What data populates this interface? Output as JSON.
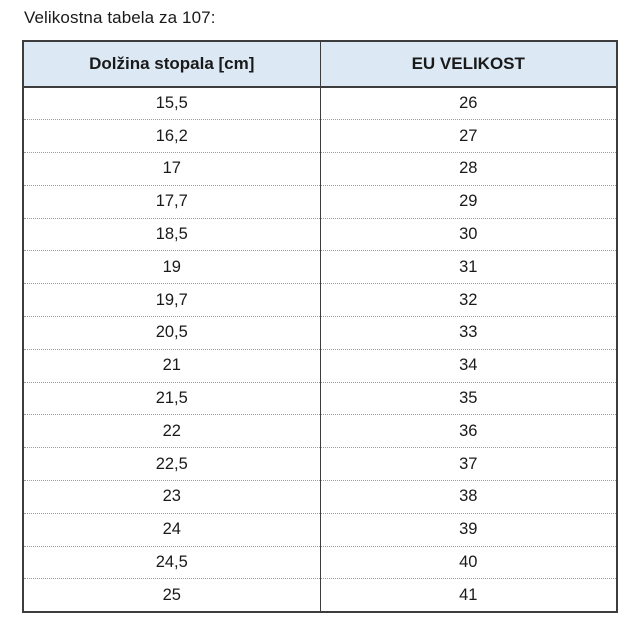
{
  "page_title": "Velikostna tabela za 107:",
  "table": {
    "columns": [
      {
        "label": "Dolžina stopala [cm]"
      },
      {
        "label": "EU VELIKOST"
      }
    ],
    "rows": [
      {
        "foot_length_cm": "15,5",
        "eu_size": "26"
      },
      {
        "foot_length_cm": "16,2",
        "eu_size": "27"
      },
      {
        "foot_length_cm": "17",
        "eu_size": "28"
      },
      {
        "foot_length_cm": "17,7",
        "eu_size": "29"
      },
      {
        "foot_length_cm": "18,5",
        "eu_size": "30"
      },
      {
        "foot_length_cm": "19",
        "eu_size": "31"
      },
      {
        "foot_length_cm": "19,7",
        "eu_size": "32"
      },
      {
        "foot_length_cm": "20,5",
        "eu_size": "33"
      },
      {
        "foot_length_cm": "21",
        "eu_size": "34"
      },
      {
        "foot_length_cm": "21,5",
        "eu_size": "35"
      },
      {
        "foot_length_cm": "22",
        "eu_size": "36"
      },
      {
        "foot_length_cm": "22,5",
        "eu_size": "37"
      },
      {
        "foot_length_cm": "23",
        "eu_size": "38"
      },
      {
        "foot_length_cm": "24",
        "eu_size": "39"
      },
      {
        "foot_length_cm": "24,5",
        "eu_size": "40"
      },
      {
        "foot_length_cm": "25",
        "eu_size": "41"
      }
    ]
  },
  "colors": {
    "header_bg": "#dce9f5",
    "border_dark": "#3d3d3d",
    "row_separator": "#9b9b9b",
    "text": "#1a1a1a"
  }
}
